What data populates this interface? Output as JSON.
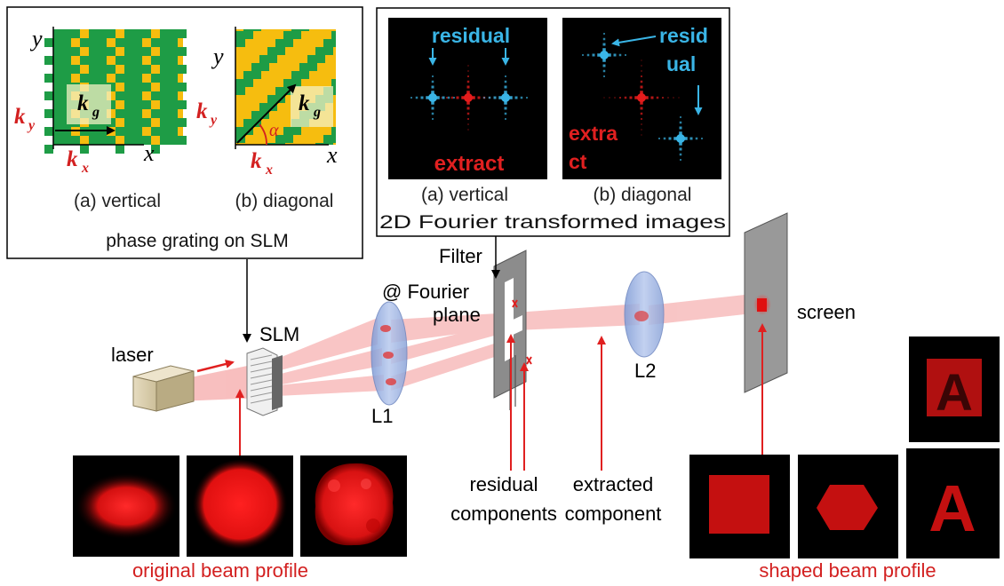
{
  "inset_grating": {
    "panel_a": {
      "axis_y": "y",
      "axis_x": "x",
      "kg": "k",
      "kg_sub": "g",
      "ky": "k",
      "ky_sub": "y",
      "kx": "k",
      "kx_sub": "x",
      "caption": "(a) vertical"
    },
    "panel_b": {
      "axis_y": "y",
      "axis_x": "x",
      "kg": "k",
      "kg_sub": "g",
      "ky": "k",
      "ky_sub": "y",
      "kx": "k",
      "kx_sub": "x",
      "alpha": "α",
      "caption": "(b) diagonal"
    },
    "title": "phase grating on SLM"
  },
  "inset_fourier": {
    "panel_a": {
      "residual": "residual",
      "extract": "extract",
      "caption": "(a) vertical"
    },
    "panel_b": {
      "resid_1": "resid",
      "resid_2": "ual",
      "extract_1": "extra",
      "extract_2": "ct",
      "caption": "(b) diagonal"
    },
    "title": "2D Fourier transformed images"
  },
  "setup": {
    "laser": "laser",
    "slm": "SLM",
    "l1": "L1",
    "filter_1": "Filter",
    "filter_2": "@ Fourier",
    "filter_3": "plane",
    "l2": "L2",
    "screen": "screen",
    "residual_1": "residual",
    "residual_2": "components",
    "extracted_1": "extracted",
    "extracted_2": "component"
  },
  "profiles": {
    "original": "original beam profile",
    "shaped": "shaped beam profile",
    "letter": "A"
  },
  "colors": {
    "green": "#1e9c46",
    "orange": "#f6bd0f",
    "beam_red": "#e41c1c",
    "label_red": "#d32020",
    "cyan": "#3ab5e6",
    "lens_blue": "#9db4e2",
    "plate_gray": "#8c8c8c"
  }
}
